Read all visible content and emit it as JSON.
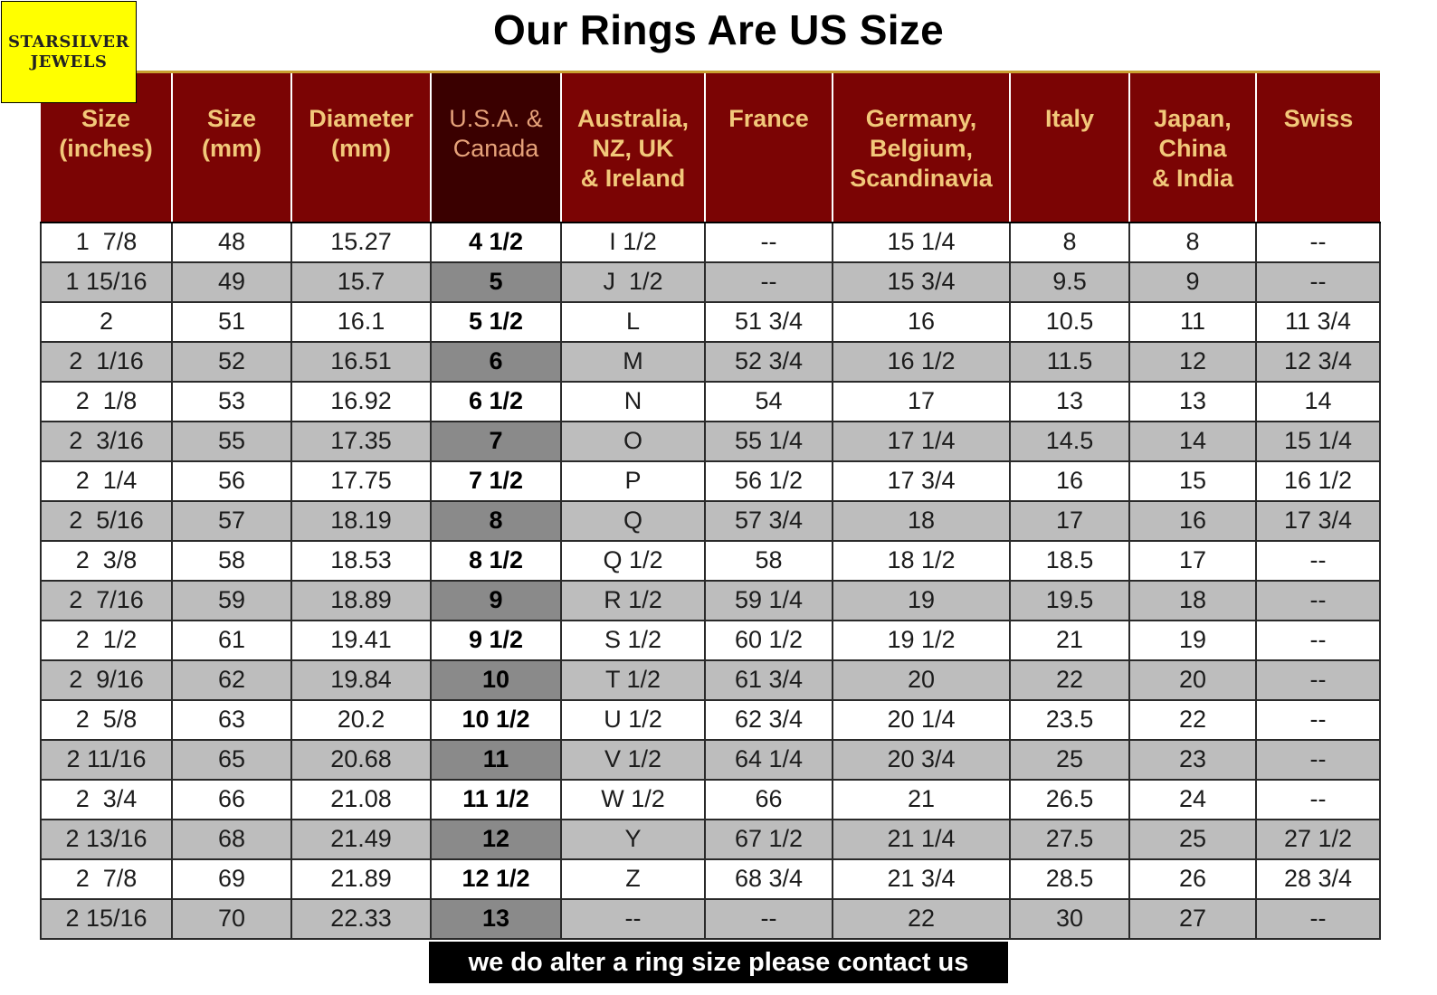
{
  "logo": {
    "line1": "STARSILVER",
    "line2": "JEWELS"
  },
  "title": "Our Rings Are US Size",
  "table": {
    "headers": [
      [
        "Size",
        "(inches)"
      ],
      [
        "Size",
        "(mm)"
      ],
      [
        "Diameter",
        "(mm)"
      ],
      [
        "U.S.A. &",
        "Canada"
      ],
      [
        "Australia,",
        "NZ, UK",
        "& Ireland"
      ],
      [
        "France"
      ],
      [
        "Germany,",
        "Belgium,",
        "Scandinavia"
      ],
      [
        "Italy"
      ],
      [
        "Japan,",
        "China",
        "& India"
      ],
      [
        "Swiss"
      ]
    ],
    "rows": [
      [
        "1  7/8",
        "48",
        "15.27",
        "4 1/2",
        "I 1/2",
        "--",
        "15 1/4",
        "8",
        "8",
        "--"
      ],
      [
        "1 15/16",
        "49",
        "15.7",
        "5",
        "J  1/2",
        "--",
        "15 3/4",
        "9.5",
        "9",
        "--"
      ],
      [
        "2",
        "51",
        "16.1",
        "5 1/2",
        "L",
        "51 3/4",
        "16",
        "10.5",
        "11",
        "11 3/4"
      ],
      [
        "2  1/16",
        "52",
        "16.51",
        "6",
        "M",
        "52 3/4",
        "16 1/2",
        "11.5",
        "12",
        "12 3/4"
      ],
      [
        "2  1/8",
        "53",
        "16.92",
        "6 1/2",
        "N",
        "54",
        "17",
        "13",
        "13",
        "14"
      ],
      [
        "2  3/16",
        "55",
        "17.35",
        "7",
        "O",
        "55 1/4",
        "17 1/4",
        "14.5",
        "14",
        "15 1/4"
      ],
      [
        "2  1/4",
        "56",
        "17.75",
        "7 1/2",
        "P",
        "56 1/2",
        "17 3/4",
        "16",
        "15",
        "16 1/2"
      ],
      [
        "2  5/16",
        "57",
        "18.19",
        "8",
        "Q",
        "57 3/4",
        "18",
        "17",
        "16",
        "17 3/4"
      ],
      [
        "2  3/8",
        "58",
        "18.53",
        "8 1/2",
        "Q 1/2",
        "58",
        "18 1/2",
        "18.5",
        "17",
        "--"
      ],
      [
        "2  7/16",
        "59",
        "18.89",
        "9",
        "R 1/2",
        "59 1/4",
        "19",
        "19.5",
        "18",
        "--"
      ],
      [
        "2  1/2",
        "61",
        "19.41",
        "9 1/2",
        "S 1/2",
        "60 1/2",
        "19 1/2",
        "21",
        "19",
        "--"
      ],
      [
        "2  9/16",
        "62",
        "19.84",
        "10",
        "T 1/2",
        "61 3/4",
        "20",
        "22",
        "20",
        "--"
      ],
      [
        "2  5/8",
        "63",
        "20.2",
        "10 1/2",
        "U 1/2",
        "62 3/4",
        "20 1/4",
        "23.5",
        "22",
        "--"
      ],
      [
        "2 11/16",
        "65",
        "20.68",
        "11",
        "V 1/2",
        "64 1/4",
        "20 3/4",
        "25",
        "23",
        "--"
      ],
      [
        "2  3/4",
        "66",
        "21.08",
        "11 1/2",
        "W 1/2",
        "66",
        "21",
        "26.5",
        "24",
        "--"
      ],
      [
        "2 13/16",
        "68",
        "21.49",
        "12",
        "Y",
        "67 1/2",
        "21 1/4",
        "27.5",
        "25",
        "27 1/2"
      ],
      [
        "2  7/8",
        "69",
        "21.89",
        "12 1/2",
        "Z",
        "68 3/4",
        "21 3/4",
        "28.5",
        "26",
        "28 3/4"
      ],
      [
        "2 15/16",
        "70",
        "22.33",
        "13",
        "--",
        "--",
        "22",
        "30",
        "27",
        "--"
      ]
    ]
  },
  "footer": "we do alter a ring size please contact us"
}
